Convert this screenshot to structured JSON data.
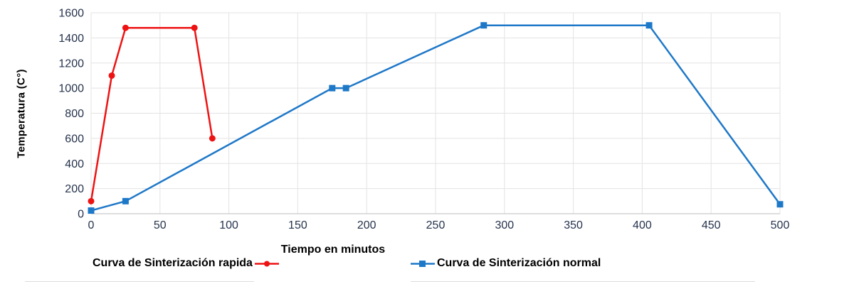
{
  "chart_data": {
    "type": "line",
    "title": "",
    "xlabel": "Tiempo en minutos",
    "ylabel": "Temperatura  (C°)",
    "xlim": [
      0,
      500
    ],
    "ylim": [
      0,
      1600
    ],
    "x_ticks": [
      0,
      50,
      100,
      150,
      200,
      250,
      300,
      350,
      400,
      450,
      500
    ],
    "y_ticks": [
      0,
      200,
      400,
      600,
      800,
      1000,
      1200,
      1400,
      1600
    ],
    "grid": true,
    "legend_position": "bottom",
    "series": [
      {
        "name": "Curva de Sinterización rapida",
        "color": "#ee1313",
        "marker": "circle",
        "points": [
          [
            0,
            100
          ],
          [
            15,
            1100
          ],
          [
            25,
            1480
          ],
          [
            75,
            1480
          ],
          [
            88,
            600
          ]
        ]
      },
      {
        "name": "Curva de Sinterización normal",
        "color": "#1e78c8",
        "marker": "square",
        "points": [
          [
            0,
            25
          ],
          [
            25,
            100
          ],
          [
            175,
            1000
          ],
          [
            185,
            1000
          ],
          [
            285,
            1500
          ],
          [
            405,
            1500
          ],
          [
            500,
            75
          ]
        ]
      }
    ]
  },
  "styles": {
    "grid_color": "#e3e3e3",
    "axis_line_color": "#bdbdbd",
    "tick_label_color": "#26334d",
    "text_color": "#000000"
  }
}
